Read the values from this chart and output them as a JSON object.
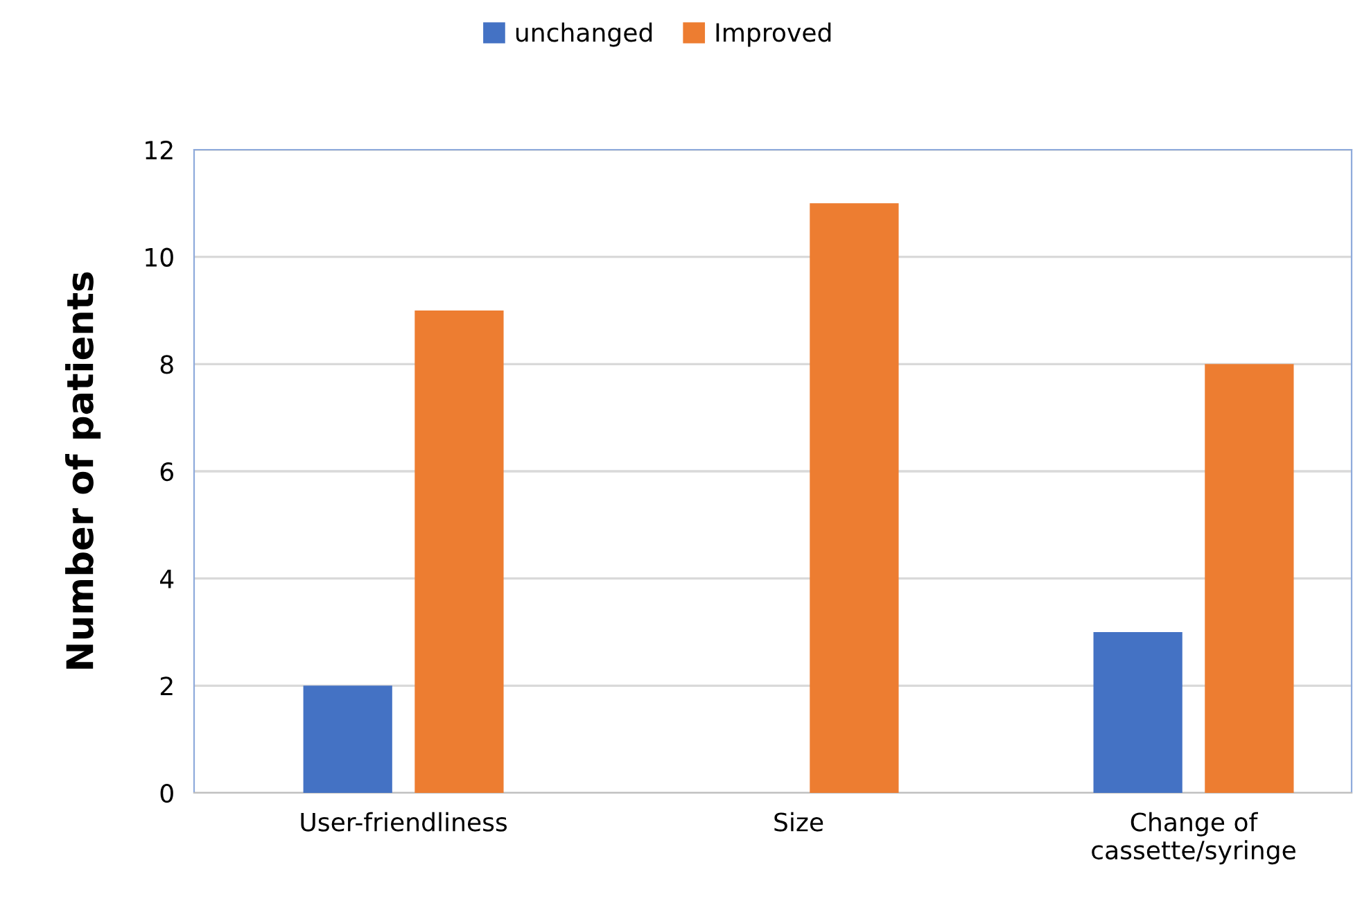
{
  "chart_data": {
    "type": "bar",
    "ylabel": "Number of patients",
    "categories": [
      "User-friendliness",
      "Size",
      "Change of\ncassette/syringe"
    ],
    "series": [
      {
        "name": "unchanged",
        "color": "#4472c4",
        "values": [
          2,
          0,
          3
        ]
      },
      {
        "name": "Improved",
        "color": "#ed7d31",
        "values": [
          9,
          11,
          8
        ]
      }
    ],
    "ylim": [
      0,
      12
    ],
    "yticks": [
      0,
      2,
      4,
      6,
      8,
      10,
      12
    ],
    "grid": "y",
    "legend": "top"
  }
}
